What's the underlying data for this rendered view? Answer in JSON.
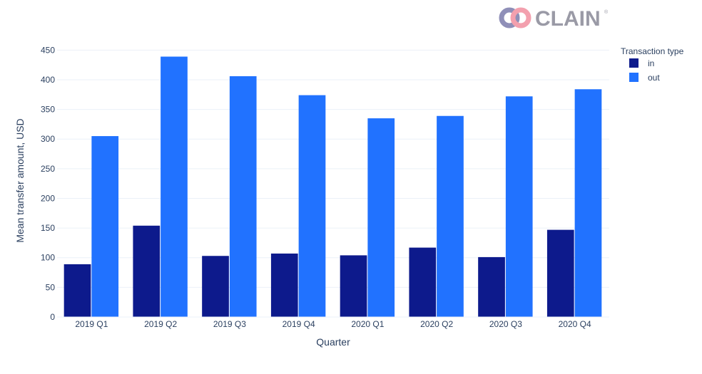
{
  "logo": {
    "text": "CLAIN",
    "reg": "®",
    "ring_left": "#8f8fb8",
    "ring_right": "#f3a0ae"
  },
  "chart_data": {
    "type": "bar",
    "categories": [
      "2019 Q1",
      "2019 Q2",
      "2019 Q3",
      "2019 Q4",
      "2020 Q1",
      "2020 Q2",
      "2020 Q3",
      "2020 Q4"
    ],
    "series": [
      {
        "name": "in",
        "color": "#0d1a8c",
        "values": [
          89,
          154,
          103,
          107,
          104,
          117,
          101,
          147
        ]
      },
      {
        "name": "out",
        "color": "#2172ff",
        "values": [
          305,
          439,
          406,
          374,
          335,
          339,
          372,
          384
        ]
      }
    ],
    "xlabel": "Quarter",
    "ylabel": "Mean transfer amount, USD",
    "ylim": [
      0,
      460
    ],
    "yticks": [
      0,
      50,
      100,
      150,
      200,
      250,
      300,
      350,
      400,
      450
    ],
    "grid": true,
    "legend": {
      "title": "Transaction type",
      "position": "top-right"
    }
  }
}
